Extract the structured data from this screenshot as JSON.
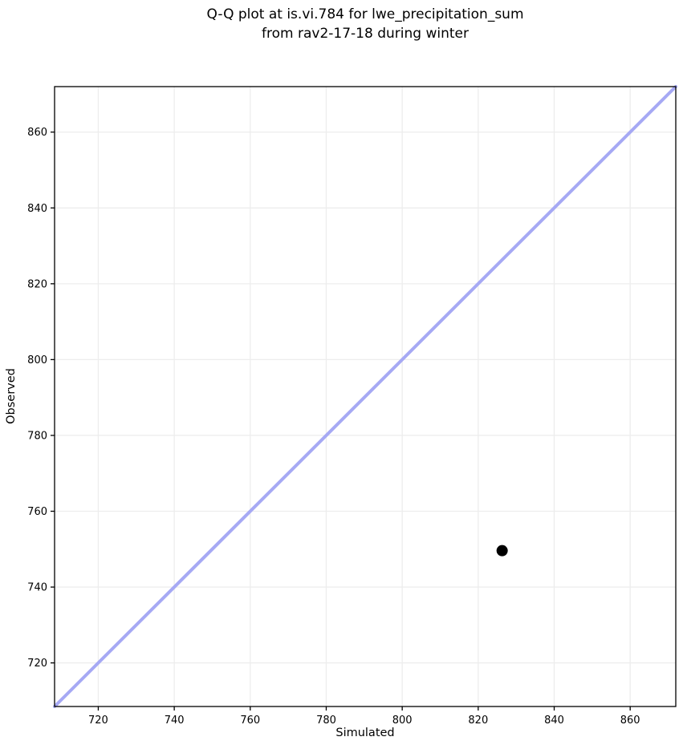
{
  "chart_data": {
    "type": "scatter",
    "title": "Q-Q plot at is.vi.784 for lwe_precipitation_sum\nfrom rav2-17-18 during winter",
    "xlabel": "Simulated",
    "ylabel": "Observed",
    "xlim": [
      708.5,
      872
    ],
    "ylim": [
      708.5,
      872
    ],
    "x_ticks": [
      720,
      740,
      760,
      780,
      800,
      820,
      840,
      860
    ],
    "y_ticks": [
      720,
      740,
      760,
      780,
      800,
      820,
      840,
      860
    ],
    "grid": true,
    "legend": "none",
    "series": [
      {
        "name": "identity-line",
        "type": "line",
        "x": [
          708.5,
          872
        ],
        "y": [
          708.5,
          872
        ],
        "color": "#a6a9f4",
        "line_width": 4
      },
      {
        "name": "qq-points",
        "type": "scatter",
        "points": [
          {
            "x": 826.3,
            "y": 749.6
          }
        ],
        "color": "#000000",
        "marker_radius": 7
      }
    ]
  },
  "colors": {
    "background": "#ffffff",
    "grid": "#ededed",
    "spine": "#000000",
    "tick": "#000000",
    "identity_line": "#a6a9f4",
    "point": "#000000"
  }
}
